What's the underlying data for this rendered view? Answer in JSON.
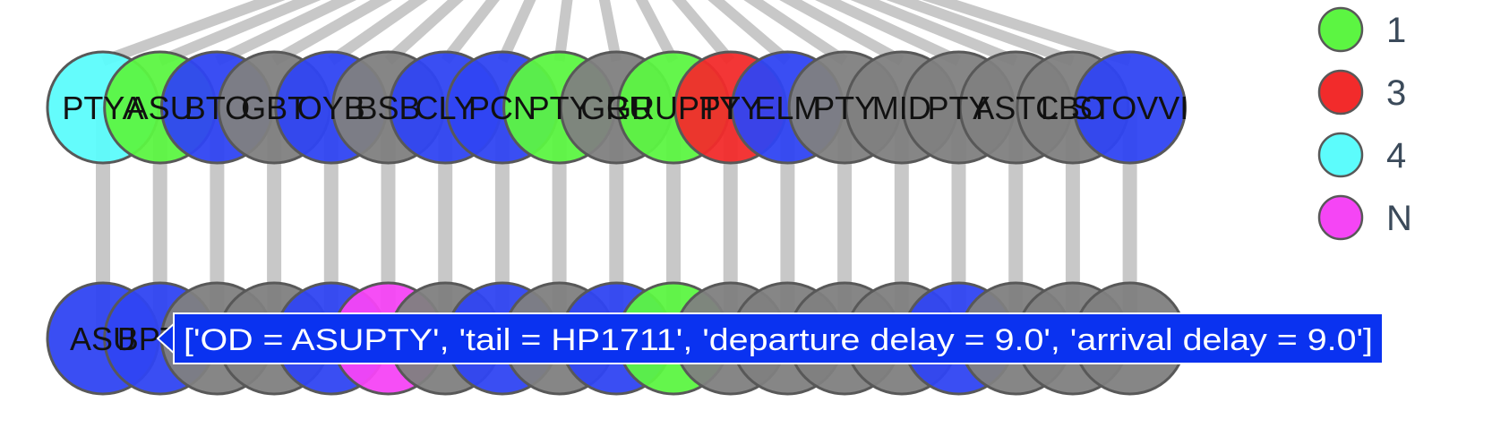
{
  "colors": {
    "green": "#5cf542",
    "red": "#f22b2b",
    "cyan": "#5cfcfc",
    "blue": "#2f45f2",
    "gray": "#808080",
    "magenta": "#f545f5",
    "edge": "#c8c8c8",
    "node_stroke": "#585858",
    "tooltip_bg": "#0a32f0",
    "tooltip_border": "#ffffff"
  },
  "top_row": [
    {
      "label": "PTYA",
      "color": "cyan"
    },
    {
      "label": "ASU",
      "color": "green"
    },
    {
      "label": "BTO",
      "color": "blue"
    },
    {
      "label": "GBT",
      "color": "gray"
    },
    {
      "label": "OYB",
      "color": "blue"
    },
    {
      "label": "BSB",
      "color": "gray"
    },
    {
      "label": "CLY",
      "color": "blue"
    },
    {
      "label": "PCN",
      "color": "blue"
    },
    {
      "label": "PTY",
      "color": "green"
    },
    {
      "label": "GRU",
      "color": "gray"
    },
    {
      "label": "GRUPTY",
      "color": "green"
    },
    {
      "label": "PTY",
      "color": "red"
    },
    {
      "label": "ELM",
      "color": "blue"
    },
    {
      "label": "PTY",
      "color": "gray"
    },
    {
      "label": "MID",
      "color": "gray"
    },
    {
      "label": "PTY",
      "color": "gray"
    },
    {
      "label": "ASTC",
      "color": "gray"
    },
    {
      "label": "LBO",
      "color": "gray"
    },
    {
      "label": "STOVVI",
      "color": "blue"
    }
  ],
  "bottom_row": [
    {
      "label": "ASU",
      "color": "blue"
    },
    {
      "label": "BPTC",
      "color": "blue"
    },
    {
      "label": "",
      "color": "gray"
    },
    {
      "label": "",
      "color": "gray"
    },
    {
      "label": "",
      "color": "blue"
    },
    {
      "label": "",
      "color": "magenta"
    },
    {
      "label": "",
      "color": "gray"
    },
    {
      "label": "",
      "color": "blue"
    },
    {
      "label": "",
      "color": "gray"
    },
    {
      "label": "",
      "color": "blue"
    },
    {
      "label": "",
      "color": "green"
    },
    {
      "label": "",
      "color": "gray"
    },
    {
      "label": "",
      "color": "gray"
    },
    {
      "label": "",
      "color": "gray"
    },
    {
      "label": "",
      "color": "gray"
    },
    {
      "label": "",
      "color": "blue"
    },
    {
      "label": "",
      "color": "gray"
    },
    {
      "label": "",
      "color": "gray"
    },
    {
      "label": "",
      "color": "gray"
    }
  ],
  "legend": [
    {
      "label": "1",
      "color": "green"
    },
    {
      "label": "3",
      "color": "red"
    },
    {
      "label": "4",
      "color": "cyan"
    },
    {
      "label": "N",
      "color": "magenta"
    }
  ],
  "tooltip": {
    "text": "['OD = ASUPTY', 'tail = HP1711', 'departure delay = 9.0', 'arrival delay = 9.0']"
  }
}
